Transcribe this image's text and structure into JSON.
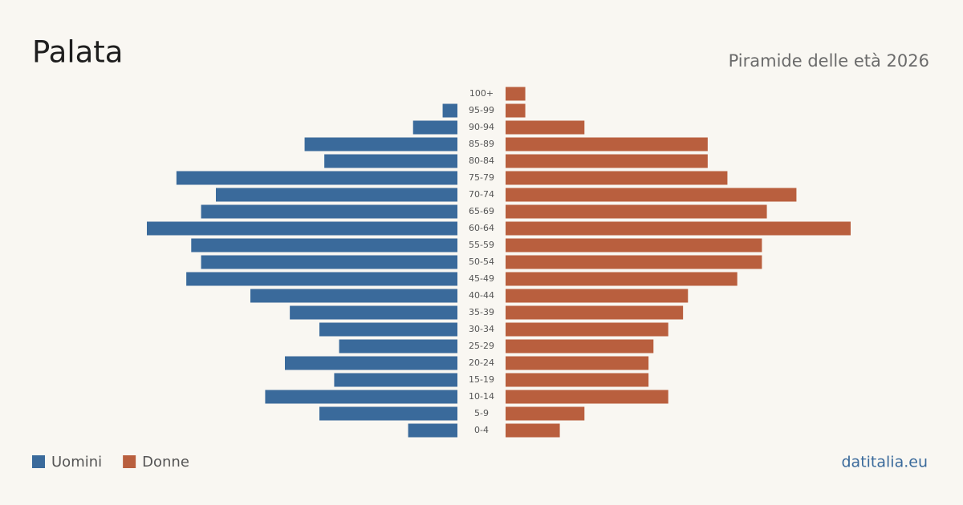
{
  "chart_data": {
    "type": "pyramid",
    "title": "Palata",
    "subtitle": "Piramide delle età 2026",
    "source": "datitalia.eu",
    "categories": [
      "100+",
      "95-99",
      "90-94",
      "85-89",
      "80-84",
      "75-79",
      "70-74",
      "65-69",
      "60-64",
      "55-59",
      "50-54",
      "45-49",
      "40-44",
      "35-39",
      "30-34",
      "25-29",
      "20-24",
      "15-19",
      "10-14",
      "5-9",
      "0-4"
    ],
    "series": [
      {
        "name": "Uomini",
        "color": "#3a6a9b",
        "values": [
          0,
          3,
          9,
          31,
          27,
          57,
          49,
          52,
          63,
          54,
          52,
          55,
          42,
          34,
          28,
          24,
          35,
          25,
          39,
          28,
          10
        ]
      },
      {
        "name": "Donne",
        "color": "#b95f3e",
        "values": [
          4,
          4,
          16,
          41,
          41,
          45,
          59,
          53,
          70,
          52,
          52,
          47,
          37,
          36,
          33,
          30,
          29,
          29,
          33,
          16,
          11
        ]
      }
    ]
  }
}
